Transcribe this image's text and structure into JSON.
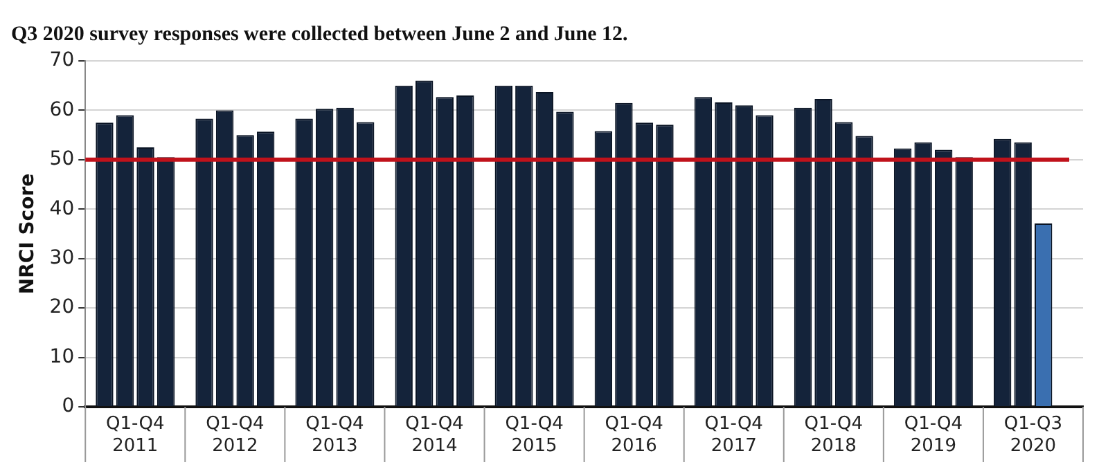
{
  "chart_data": {
    "type": "bar",
    "title": "Q3 2020 survey responses were collected between June 2 and June 12.",
    "ylabel": "NRCI Score",
    "categories": [
      "Q1-Q4 2011",
      "Q1-Q4 2012",
      "Q1-Q4 2013",
      "Q1-Q4 2014",
      "Q1-Q4 2015",
      "Q1-Q4 2016",
      "Q1-Q4 2017",
      "Q1-Q4 2018",
      "Q1-Q4 2019",
      "Q1-Q3 2020"
    ],
    "series": [
      {
        "color": "#14233a",
        "values": [
          57.5,
          58.3,
          58.3,
          65,
          65,
          55.8,
          62.7,
          60.5,
          52.3,
          54.2
        ]
      },
      {
        "color": "#14233a",
        "values": [
          59,
          60,
          60.3,
          66,
          65,
          61.5,
          61.6,
          62.3,
          53.5,
          53.5
        ]
      },
      {
        "color": "#14233a",
        "colors": [
          "#14233a",
          "#14233a",
          "#14233a",
          "#14233a",
          "#14233a",
          "#14233a",
          "#14233a",
          "#14233a",
          "#14233a",
          "#3a6fb0"
        ],
        "values": [
          52.5,
          55,
          60.5,
          62.7,
          63.7,
          57.5,
          61,
          57.6,
          52,
          37.1
        ]
      },
      {
        "color": "#14233a",
        "values": [
          50.5,
          55.7,
          57.6,
          63,
          59.7,
          57.1,
          59,
          54.8,
          50.5,
          null
        ]
      }
    ],
    "ylim": [
      0,
      70
    ],
    "yticks": [
      0,
      10,
      20,
      30,
      40,
      50,
      60,
      70
    ],
    "grid": "y",
    "legend": false,
    "ref_lines": [
      {
        "axis": "y",
        "value": 50,
        "color": "#c0121b"
      }
    ]
  }
}
